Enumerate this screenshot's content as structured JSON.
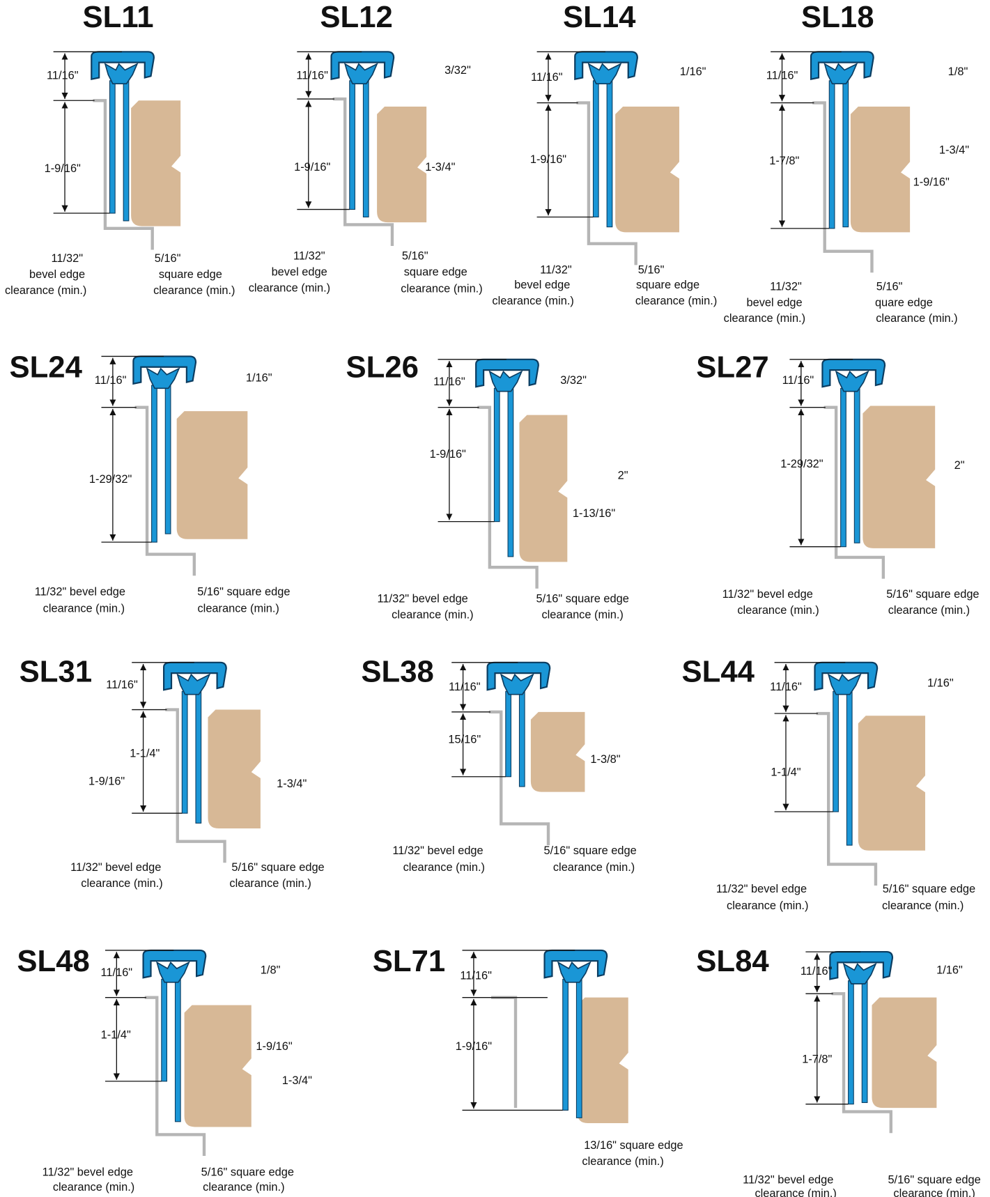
{
  "models": [
    {
      "name": "SL11",
      "labels": [
        "11/16\"",
        "1-9/16\"",
        "11/32\"",
        "bevel edge",
        "clearance (min.)",
        "5/16\"",
        "square edge",
        "clearance (min.)"
      ]
    },
    {
      "name": "SL12",
      "labels": [
        "11/16\"",
        "3/32\"",
        "1-9/16\"",
        "1-3/4\"",
        "11/32\"",
        "bevel edge",
        "clearance (min.)",
        "5/16\"",
        "square edge",
        "clearance (min.)"
      ]
    },
    {
      "name": "SL14",
      "labels": [
        "11/16\"",
        "1/16\"",
        "1-9/16\"",
        "11/32\"",
        "bevel edge",
        "clearance (min.)",
        "5/16\"",
        "square edge",
        "clearance (min.)"
      ]
    },
    {
      "name": "SL18",
      "labels": [
        "11/16\"",
        "1/8\"",
        "1-3/4\"",
        "1-7/8\"",
        "1-9/16\"",
        "11/32\"",
        "bevel edge",
        "clearance (min.)",
        "5/16\"",
        "quare edge",
        "clearance (min.)"
      ]
    },
    {
      "name": "SL24",
      "labels": [
        "11/16\"",
        "1/16\"",
        "1-29/32\"",
        "11/32\" bevel edge",
        "clearance (min.)",
        "5/16\" square edge",
        "clearance (min.)"
      ]
    },
    {
      "name": "SL26",
      "labels": [
        "11/16\"",
        "3/32\"",
        "1-9/16\"",
        "2\"",
        "1-13/16\"",
        "11/32\" bevel edge",
        "clearance (min.)",
        "5/16\" square edge",
        "clearance (min.)"
      ]
    },
    {
      "name": "SL27",
      "labels": [
        "11/16\"",
        "1-29/32\"",
        "2\"",
        "11/32\" bevel edge",
        "clearance (min.)",
        "5/16\" square edge",
        "clearance (min.)"
      ]
    },
    {
      "name": "SL31",
      "labels": [
        "11/16\"",
        "1-1/4\"",
        "1-9/16\"",
        "1-3/4\"",
        "11/32\" bevel edge",
        "clearance (min.)",
        "5/16\" square edge",
        "clearance (min.)"
      ]
    },
    {
      "name": "SL38",
      "labels": [
        "11/16\"",
        "15/16\"",
        "1-3/8\"",
        "11/32\" bevel edge",
        "clearance (min.)",
        "5/16\" square edge",
        "clearance (min.)"
      ]
    },
    {
      "name": "SL44",
      "labels": [
        "11/16\"",
        "1/16\"",
        "1-1/4\"",
        "11/32\" bevel edge",
        "clearance (min.)",
        "5/16\" square edge",
        "clearance (min.)"
      ]
    },
    {
      "name": "SL48",
      "labels": [
        "11/16\"",
        "1/8\"",
        "1-1/4\"",
        "1-9/16\"",
        "1-3/4\"",
        "11/32\" bevel edge",
        "clearance (min.)",
        "5/16\" square edge",
        "clearance (min.)"
      ]
    },
    {
      "name": "SL71",
      "labels": [
        "11/16\"",
        "1-9/16\"",
        "13/16\" square edge",
        "clearance (min.)"
      ]
    },
    {
      "name": "SL84",
      "labels": [
        "11/16\"",
        "1/16\"",
        "1-7/8\"",
        "11/32\" bevel edge",
        "clearance (min.)",
        "5/16\" square edge",
        "clearance (min.)"
      ]
    }
  ]
}
